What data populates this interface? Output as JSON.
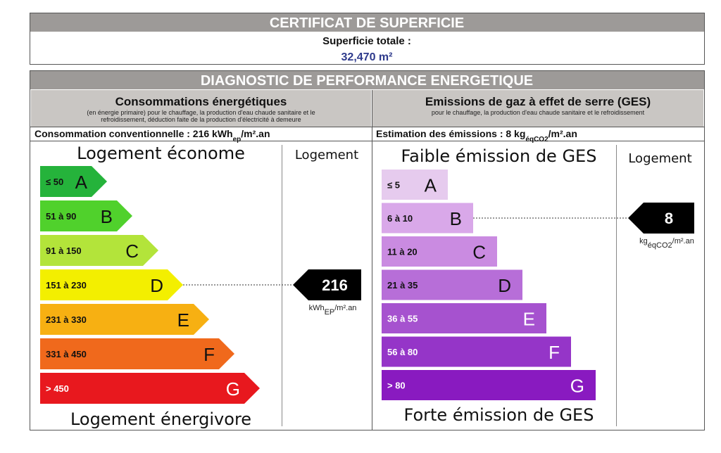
{
  "certificate": {
    "title": "CERTIFICAT DE SUPERFICIE",
    "label": "Superficie totale  :",
    "value": "32,470 m²"
  },
  "diagnostic": {
    "title": "DIAGNOSTIC DE PERFORMANCE ENERGETIQUE",
    "energy": {
      "title": "Consommations énergétiques",
      "subtitle": [
        "(en énergie primaire) pour le chauffage, la production d'eau chaude sanitaire et le",
        "refroidissement, déduction faite de la production d'électricité à demeure"
      ],
      "summary": {
        "text": "Consommation conventionnelle : 216 kWh",
        "sub": "ep",
        "suffix": "/m².an"
      },
      "top_label": "Logement économe",
      "bottom_label": "Logement énergivore",
      "column_label": "Logement",
      "classes": [
        {
          "range": "≤ 50",
          "letter": "A",
          "color": "#25b33b",
          "text_color": "#111"
        },
        {
          "range": "51 à 90",
          "letter": "B",
          "color": "#50d12c",
          "text_color": "#111"
        },
        {
          "range": "91 à 150",
          "letter": "C",
          "color": "#b3e43a",
          "text_color": "#111"
        },
        {
          "range": "151 à 230",
          "letter": "D",
          "color": "#f3ef00",
          "text_color": "#111"
        },
        {
          "range": "231 à 330",
          "letter": "E",
          "color": "#f7b012",
          "text_color": "#111"
        },
        {
          "range": "331 à 450",
          "letter": "F",
          "color": "#f0691c",
          "text_color": "#111"
        },
        {
          "range": "> 450",
          "letter": "G",
          "color": "#e8181e",
          "text_color": "#fff"
        }
      ],
      "indicator": {
        "value": "216",
        "unit": "kWh",
        "unit_sub": "EP",
        "unit_suffix": "/m².an",
        "class_index": 3
      }
    },
    "ges": {
      "title": "Emissions de gaz à effet de serre (GES)",
      "subtitle": [
        "pour le chauffage, la production d'eau chaude sanitaire et le refroidissement"
      ],
      "summary": {
        "text": "Estimation des émissions : 8 kg",
        "sub": "éqCO2",
        "suffix": "/m².an"
      },
      "top_label": "Faible émission de GES",
      "bottom_label": "Forte émission de GES",
      "column_label": "Logement",
      "classes": [
        {
          "range": "≤ 5",
          "letter": "A",
          "color": "#e6cbee",
          "text_color": "#111"
        },
        {
          "range": "6 à 10",
          "letter": "B",
          "color": "#d9a8e9",
          "text_color": "#111"
        },
        {
          "range": "11 à 20",
          "letter": "C",
          "color": "#ca8be1",
          "text_color": "#111"
        },
        {
          "range": "21 à 35",
          "letter": "D",
          "color": "#b76ed8",
          "text_color": "#111"
        },
        {
          "range": "36 à 55",
          "letter": "E",
          "color": "#a652cf",
          "text_color": "#fff"
        },
        {
          "range": "56 à 80",
          "letter": "F",
          "color": "#9535c8",
          "text_color": "#fff"
        },
        {
          "range": "> 80",
          "letter": "G",
          "color": "#891ac0",
          "text_color": "#fff"
        }
      ],
      "indicator": {
        "value": "8",
        "unit": "kg",
        "unit_sub": "éqCO2",
        "unit_suffix": "/m².an",
        "class_index": 1
      }
    }
  }
}
